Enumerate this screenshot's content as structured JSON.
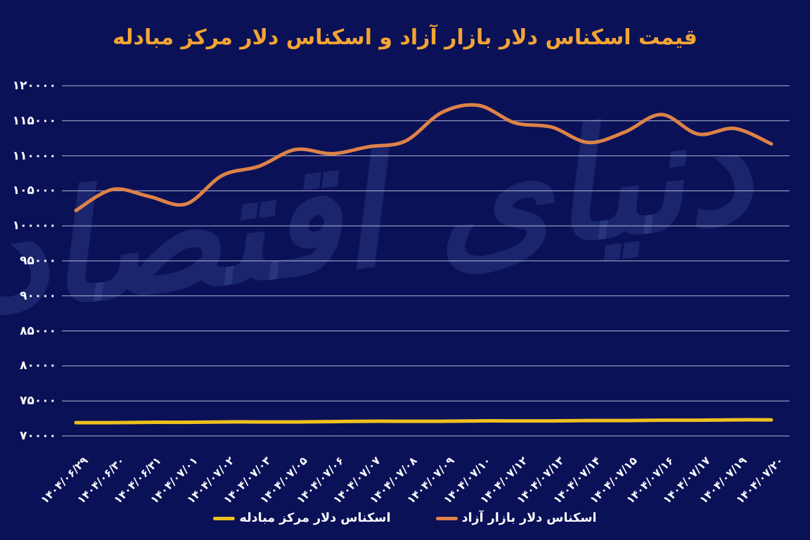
{
  "title": {
    "text": "قیمت اسکناس دلار بازار آزاد و اسکناس دلار مرکز مبادله",
    "color": "#f3a434"
  },
  "watermark": {
    "text": "دنیای اقتصاد"
  },
  "legend": {
    "items": [
      {
        "label": "اسکناس دلار بازار آزاد",
        "color": "#dd8248"
      },
      {
        "label": "اسکناس دلار مرکز مبادله",
        "color": "#eec01e"
      }
    ]
  },
  "colors": {
    "background": "#0a1157",
    "gridline": "#cfd4ea",
    "axis_text": "#ffffff",
    "title": "#f3a434",
    "free_market_line": "#dd8248",
    "exchange_center_line": "#eec01e"
  },
  "chart_data": {
    "type": "line",
    "title": "قیمت اسکناس دلار بازار آزاد و اسکناس دلار مرکز مبادله",
    "xlabel": "",
    "ylabel": "",
    "grid": "horizontal",
    "legend_position": "bottom",
    "ylim": [
      70000,
      120000
    ],
    "ytick_step": 5000,
    "ytick_labels": [
      "۷۰۰۰۰",
      "۷۵۰۰۰",
      "۸۰۰۰۰",
      "۸۵۰۰۰",
      "۹۰۰۰۰",
      "۹۵۰۰۰",
      "۱۰۰۰۰۰",
      "۱۰۵۰۰۰",
      "۱۱۰۰۰۰",
      "۱۱۵۰۰۰",
      "۱۲۰۰۰۰"
    ],
    "categories": [
      "۱۴۰۴/۰۶/۲۹",
      "۱۴۰۴/۰۶/۳۰",
      "۱۴۰۴/۰۶/۳۱",
      "۱۴۰۴/۰۷/۰۱",
      "۱۴۰۴/۰۷/۰۲",
      "۱۴۰۴/۰۷/۰۳",
      "۱۴۰۴/۰۷/۰۵",
      "۱۴۰۴/۰۷/۰۶",
      "۱۴۰۴/۰۷/۰۷",
      "۱۴۰۴/۰۷/۰۸",
      "۱۴۰۴/۰۷/۰۹",
      "۱۴۰۴/۰۷/۱۰",
      "۱۴۰۴/۰۷/۱۲",
      "۱۴۰۴/۰۷/۱۳",
      "۱۴۰۴/۰۷/۱۴",
      "۱۴۰۴/۰۷/۱۵",
      "۱۴۰۴/۰۷/۱۶",
      "۱۴۰۴/۰۷/۱۷",
      "۱۴۰۴/۰۷/۱۹",
      "۱۴۰۴/۰۷/۲۰"
    ],
    "series": [
      {
        "name": "اسکناس دلار بازار آزاد",
        "color": "#dd8248",
        "values": [
          102200,
          105200,
          104200,
          103100,
          107200,
          108500,
          110900,
          110300,
          111300,
          112100,
          116200,
          117200,
          114700,
          114100,
          111900,
          113400,
          115900,
          113100,
          113900,
          111700
        ]
      },
      {
        "name": "اسکناس دلار مرکز مبادله",
        "color": "#eec01e",
        "values": [
          71900,
          71900,
          71950,
          71950,
          72000,
          72000,
          72000,
          72050,
          72100,
          72100,
          72100,
          72150,
          72150,
          72150,
          72200,
          72200,
          72250,
          72250,
          72300,
          72300
        ]
      }
    ]
  }
}
